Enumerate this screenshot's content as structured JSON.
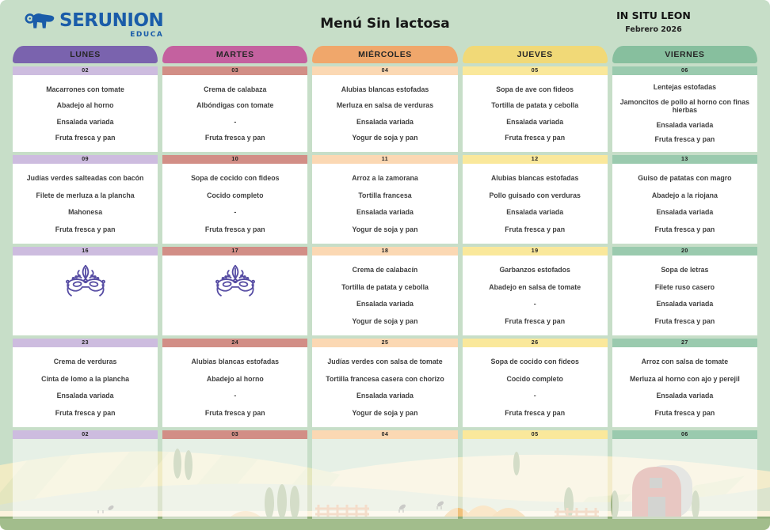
{
  "brand": {
    "name": "SERUNION",
    "sub": "EDUCA",
    "color": "#1A5CA9"
  },
  "title": "Menú Sin lactosa",
  "site": {
    "name": "IN SITU LEON",
    "month": "Febrero 2026"
  },
  "colors": {
    "page_bg": "#C7DEC8",
    "cell_bg": "#FFFFFF",
    "menu_text": "#3F3F3F",
    "grass": "#A2BD8C",
    "mask_icon": "#564CA3"
  },
  "days": [
    {
      "label": "LUNES",
      "header_color": "#7A63AE",
      "band_color": "#CDBCDF"
    },
    {
      "label": "MARTES",
      "header_color": "#C4619F",
      "band_color": "#D28E86"
    },
    {
      "label": "MIÉRCOLES",
      "header_color": "#F0A76B",
      "band_color": "#FBD8B3"
    },
    {
      "label": "JUEVES",
      "header_color": "#F1D977",
      "band_color": "#FAE89B"
    },
    {
      "label": "VIERNES",
      "header_color": "#87BF9E",
      "band_color": "#9ACAAE"
    }
  ],
  "weeks": [
    {
      "cells": [
        {
          "date": "02",
          "items": [
            "Macarrones con tomate",
            "Abadejo al horno",
            "Ensalada variada",
            "Fruta fresca y pan"
          ]
        },
        {
          "date": "03",
          "items": [
            "Crema de calabaza",
            "Albóndigas con tomate",
            "-",
            "Fruta fresca y pan"
          ]
        },
        {
          "date": "04",
          "items": [
            "Alubias blancas estofadas",
            "Merluza en salsa de verduras",
            "Ensalada variada",
            "Yogur de soja y pan"
          ]
        },
        {
          "date": "05",
          "items": [
            "Sopa de ave con fideos",
            "Tortilla de patata y cebolla",
            "Ensalada variada",
            "Fruta fresca y pan"
          ]
        },
        {
          "date": "06",
          "items": [
            "Lentejas estofadas",
            "Jamoncitos de pollo al horno con finas hierbas",
            "Ensalada variada",
            "Fruta fresca y pan"
          ]
        }
      ]
    },
    {
      "cells": [
        {
          "date": "09",
          "items": [
            "Judías verdes salteadas con bacón",
            "Filete de merluza a la plancha",
            "Mahonesa",
            "Fruta fresca y pan"
          ]
        },
        {
          "date": "10",
          "items": [
            "Sopa de cocido con fideos",
            "Cocido completo",
            "-",
            "Fruta fresca y pan"
          ]
        },
        {
          "date": "11",
          "items": [
            "Arroz a la zamorana",
            "Tortilla francesa",
            "Ensalada variada",
            "Yogur de soja y pan"
          ]
        },
        {
          "date": "12",
          "items": [
            "Alubias blancas estofadas",
            "Pollo guisado con verduras",
            "Ensalada variada",
            "Fruta fresca y pan"
          ]
        },
        {
          "date": "13",
          "items": [
            "Guiso de patatas con magro",
            "Abadejo a la riojana",
            "Ensalada variada",
            "Fruta fresca y pan"
          ]
        }
      ]
    },
    {
      "cells": [
        {
          "date": "16",
          "icon": "carnival-mask",
          "items": []
        },
        {
          "date": "17",
          "icon": "carnival-mask",
          "items": []
        },
        {
          "date": "18",
          "items": [
            "Crema de calabacín",
            "Tortilla de patata y cebolla",
            "Ensalada variada",
            "Yogur de soja y pan"
          ]
        },
        {
          "date": "19",
          "items": [
            "Garbanzos estofados",
            "Abadejo en salsa de tomate",
            "-",
            "Fruta fresca y pan"
          ]
        },
        {
          "date": "20",
          "items": [
            "Sopa de letras",
            "Filete ruso casero",
            "Ensalada variada",
            "Fruta fresca y pan"
          ]
        }
      ]
    },
    {
      "cells": [
        {
          "date": "23",
          "items": [
            "Crema de verduras",
            "Cinta de lomo a la plancha",
            "Ensalada variada",
            "Fruta fresca y pan"
          ]
        },
        {
          "date": "24",
          "items": [
            "Alubias blancas estofadas",
            "Abadejo al horno",
            "-",
            "Fruta fresca y pan"
          ]
        },
        {
          "date": "25",
          "items": [
            "Judías verdes con salsa de tomate",
            "Tortilla francesa casera con chorizo",
            "Ensalada variada",
            "Yogur de soja y pan"
          ]
        },
        {
          "date": "26",
          "items": [
            "Sopa de cocido con fideos",
            "Cocido completo",
            "-",
            "Fruta fresca y pan"
          ]
        },
        {
          "date": "27",
          "items": [
            "Arroz con salsa de tomate",
            "Merluza al horno con ajo y perejil",
            "Ensalada variada",
            "Fruta fresca y pan"
          ]
        }
      ]
    },
    {
      "translucent": true,
      "cells": [
        {
          "date": "02",
          "items": []
        },
        {
          "date": "03",
          "items": []
        },
        {
          "date": "04",
          "items": []
        },
        {
          "date": "05",
          "items": []
        },
        {
          "date": "06",
          "items": []
        }
      ]
    }
  ]
}
